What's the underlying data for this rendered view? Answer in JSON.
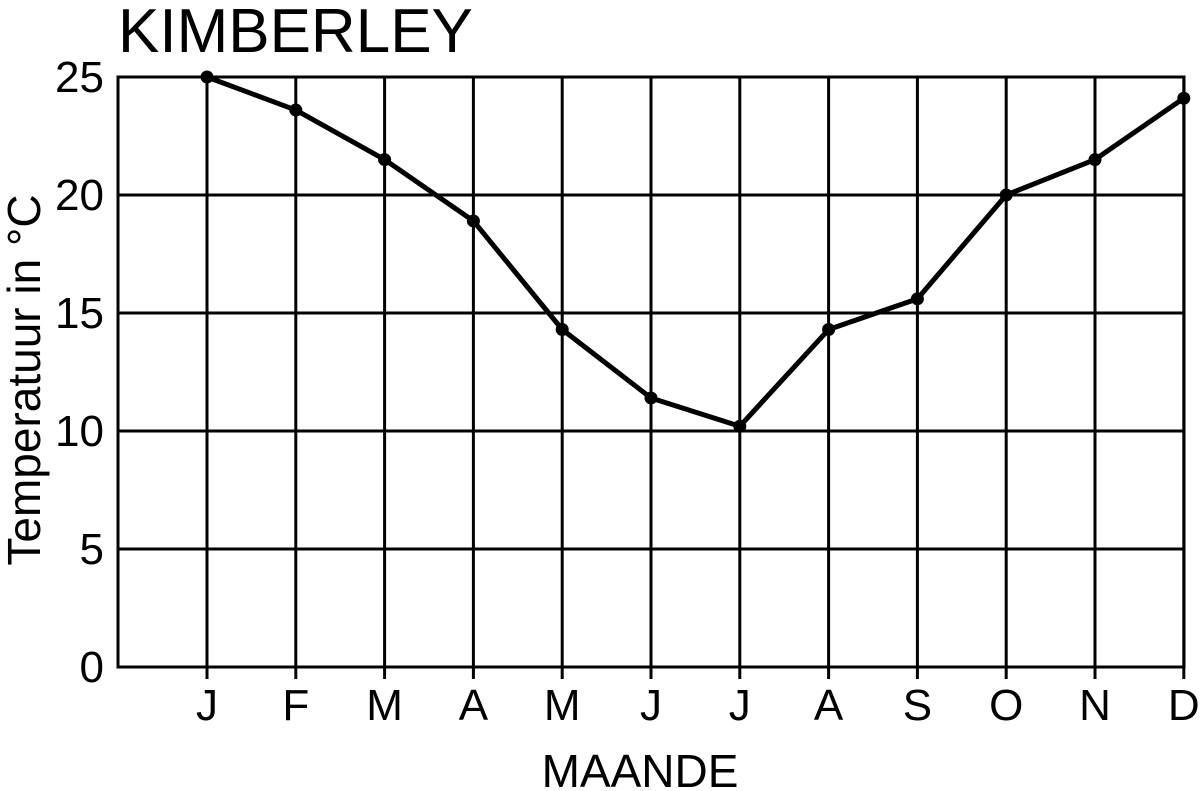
{
  "chart_data": {
    "type": "line",
    "title": "KIMBERLEY",
    "xlabel": "MAANDE",
    "ylabel": "Temperatuur in °C",
    "categories": [
      "J",
      "F",
      "M",
      "A",
      "M",
      "J",
      "J",
      "A",
      "S",
      "O",
      "N",
      "D"
    ],
    "series": [
      {
        "values": [
          25.0,
          23.6,
          21.5,
          18.9,
          14.3,
          11.4,
          10.2,
          14.3,
          15.6,
          20.0,
          21.5,
          24.1
        ]
      }
    ],
    "ylim": [
      0,
      25
    ],
    "yticks": [
      "0",
      "5",
      "10",
      "15",
      "20",
      "25"
    ],
    "grid": true,
    "legend": "none",
    "colors": {
      "line": "#000000",
      "grid": "#000000",
      "background": "#ffffff"
    }
  }
}
